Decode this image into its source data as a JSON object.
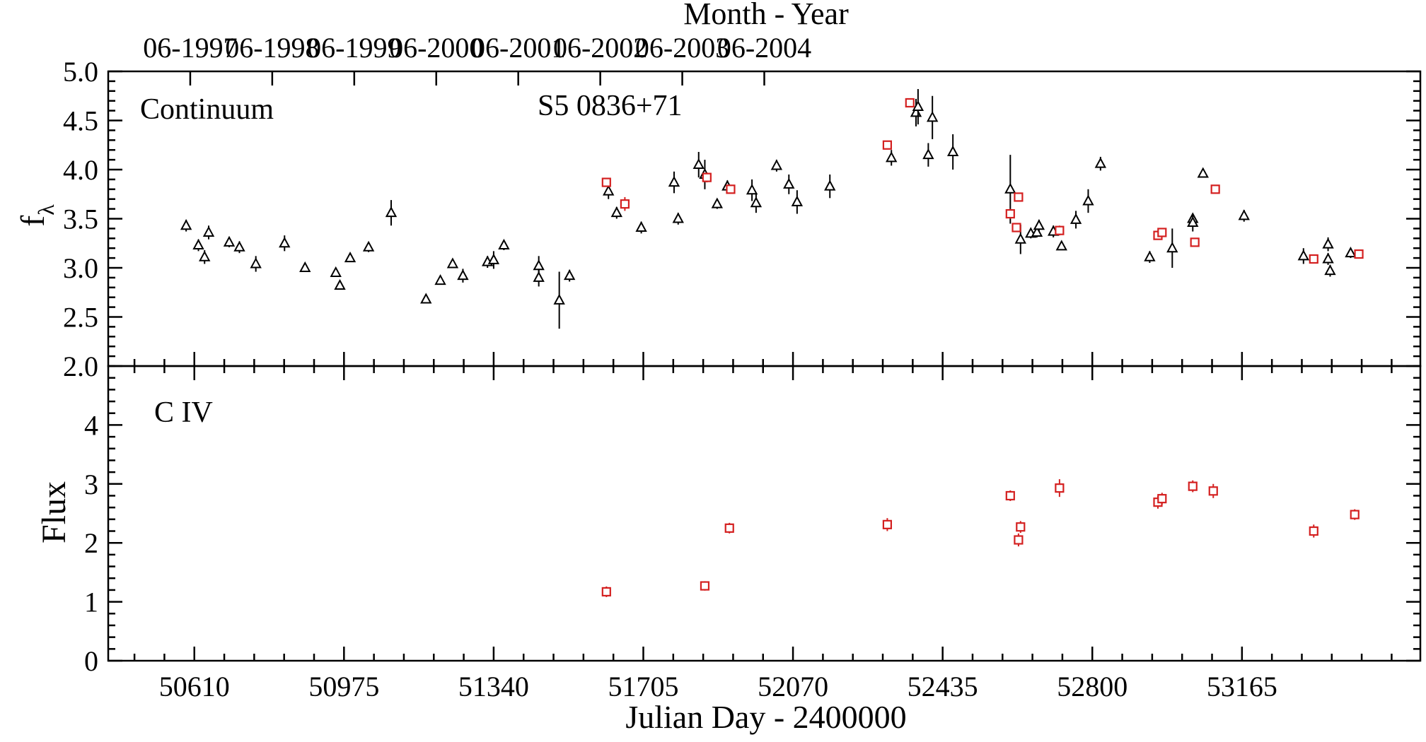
{
  "chart_data": {
    "type": "scatter",
    "figure_label": "S5 0836+71",
    "top_axis": {
      "label": "Month - Year",
      "ticks": [
        {
          "jd": 50600,
          "label": "06-1997"
        },
        {
          "jd": 50800,
          "label": "06-1998"
        },
        {
          "jd": 51000,
          "label": "06-1999"
        },
        {
          "jd": 51200,
          "label": "06-2000"
        },
        {
          "jd": 51400,
          "label": "06-2001"
        },
        {
          "jd": 51600,
          "label": "06-2002"
        },
        {
          "jd": 51800,
          "label": "06-2003"
        },
        {
          "jd": 52000,
          "label": "06-2004"
        }
      ]
    },
    "x_axis": {
      "label": "Julian Day - 2400000",
      "range": [
        50400,
        53600
      ],
      "ticks": [
        50610,
        50975,
        51340,
        51705,
        52070,
        52435,
        52800,
        53165
      ]
    },
    "panels": [
      {
        "name": "Continuum",
        "ylabel": "f",
        "ylabel_sub": "λ",
        "ylim": [
          2.0,
          5.0
        ],
        "yticks": [
          "2.0",
          "2.5",
          "3.0",
          "3.5",
          "4.0",
          "4.5",
          "5.0"
        ],
        "series": [
          {
            "marker": "triangle",
            "color": "#000000",
            "points": [
              [
                50590,
                3.43,
                0.06
              ],
              [
                50620,
                3.23,
                0.06
              ],
              [
                50635,
                3.11,
                0.07
              ],
              [
                50645,
                3.36,
                0.07
              ],
              [
                50695,
                3.26,
                0.05
              ],
              [
                50720,
                3.21,
                0.06
              ],
              [
                50760,
                3.04,
                0.08
              ],
              [
                50830,
                3.25,
                0.08
              ],
              [
                50880,
                3.0,
                0.04
              ],
              [
                50955,
                2.95,
                0.04
              ],
              [
                50965,
                2.82,
                0.04
              ],
              [
                50990,
                3.1,
                0.04
              ],
              [
                51035,
                3.21,
                0.05
              ],
              [
                51090,
                3.56,
                0.13
              ],
              [
                51175,
                2.68,
                0.04
              ],
              [
                51210,
                2.87,
                0.04
              ],
              [
                51240,
                3.04,
                0.04
              ],
              [
                51265,
                2.92,
                0.07
              ],
              [
                51325,
                3.06,
                0.06
              ],
              [
                51340,
                3.08,
                0.09
              ],
              [
                51365,
                3.23,
                0.05
              ],
              [
                51450,
                3.02,
                0.1
              ],
              [
                51450,
                2.9,
                0.09
              ],
              [
                51500,
                2.67,
                0.29
              ],
              [
                51525,
                2.92,
                0.06
              ],
              [
                51620,
                3.78,
                0.08
              ],
              [
                51640,
                3.56,
                0.06
              ],
              [
                51700,
                3.41,
                0.06
              ],
              [
                51780,
                3.87,
                0.11
              ],
              [
                51790,
                3.5,
                0.06
              ],
              [
                51840,
                4.05,
                0.13
              ],
              [
                51855,
                3.95,
                0.15
              ],
              [
                51885,
                3.65,
                0.05
              ],
              [
                51910,
                3.83,
                0.06
              ],
              [
                51970,
                3.79,
                0.11
              ],
              [
                51980,
                3.66,
                0.1
              ],
              [
                52030,
                4.04,
                0.06
              ],
              [
                52060,
                3.85,
                0.1
              ],
              [
                52080,
                3.67,
                0.12
              ],
              [
                52160,
                3.83,
                0.12
              ],
              [
                52310,
                4.12,
                0.08
              ],
              [
                52370,
                4.58,
                0.14
              ],
              [
                52375,
                4.64,
                0.18
              ],
              [
                52400,
                4.15,
                0.12
              ],
              [
                52410,
                4.53,
                0.22
              ],
              [
                52460,
                4.18,
                0.18
              ],
              [
                52600,
                3.8,
                0.35
              ],
              [
                52625,
                3.29,
                0.15
              ],
              [
                52650,
                3.35,
                0.05
              ],
              [
                52665,
                3.36,
                0.05
              ],
              [
                52670,
                3.43,
                0.06
              ],
              [
                52705,
                3.37,
                0.06
              ],
              [
                52725,
                3.22,
                0.04
              ],
              [
                52760,
                3.49,
                0.09
              ],
              [
                52790,
                3.68,
                0.12
              ],
              [
                52820,
                4.06,
                0.07
              ],
              [
                52940,
                3.11,
                0.06
              ],
              [
                52995,
                3.2,
                0.2
              ],
              [
                53045,
                3.5,
                0.05
              ],
              [
                53045,
                3.46,
                0.09
              ],
              [
                53070,
                3.96,
                0.04
              ],
              [
                53170,
                3.53,
                0.06
              ],
              [
                53315,
                3.12,
                0.08
              ],
              [
                53375,
                3.24,
                0.07
              ],
              [
                53375,
                3.09,
                0.06
              ],
              [
                53380,
                2.97,
                0.06
              ],
              [
                53430,
                3.15,
                0.05
              ]
            ]
          },
          {
            "marker": "square",
            "color": "#d42020",
            "points": [
              [
                51615,
                3.87,
                0.03
              ],
              [
                51660,
                3.65,
                0.07
              ],
              [
                51860,
                3.92,
                0.05
              ],
              [
                51918,
                3.8,
                0.04
              ],
              [
                52300,
                4.25,
                0.03
              ],
              [
                52355,
                4.68,
                0.03
              ],
              [
                52600,
                3.55,
                0.05
              ],
              [
                52615,
                3.41,
                0.04
              ],
              [
                52620,
                3.72,
                0.04
              ],
              [
                52720,
                3.38,
                0.05
              ],
              [
                52960,
                3.33,
                0.04
              ],
              [
                52970,
                3.36,
                0.04
              ],
              [
                53050,
                3.26,
                0.04
              ],
              [
                53100,
                3.8,
                0.04
              ],
              [
                53340,
                3.09,
                0.04
              ],
              [
                53450,
                3.14,
                0.03
              ]
            ]
          }
        ]
      },
      {
        "name": "C IV",
        "ylabel": "Flux",
        "ylim": [
          0,
          5
        ],
        "yticks": [
          "0",
          "1",
          "2",
          "3",
          "4"
        ],
        "series": [
          {
            "marker": "square",
            "color": "#d42020",
            "points": [
              [
                51615,
                1.17,
                0.09
              ],
              [
                51855,
                1.27,
                0.08
              ],
              [
                51915,
                2.25,
                0.09
              ],
              [
                52300,
                2.31,
                0.11
              ],
              [
                52600,
                2.8,
                0.09
              ],
              [
                52620,
                2.05,
                0.11
              ],
              [
                52625,
                2.27,
                0.1
              ],
              [
                52720,
                2.93,
                0.15
              ],
              [
                52960,
                2.69,
                0.11
              ],
              [
                52970,
                2.75,
                0.1
              ],
              [
                53045,
                2.96,
                0.1
              ],
              [
                53095,
                2.88,
                0.12
              ],
              [
                53340,
                2.2,
                0.11
              ],
              [
                53440,
                2.48,
                0.09
              ]
            ]
          }
        ]
      }
    ]
  }
}
